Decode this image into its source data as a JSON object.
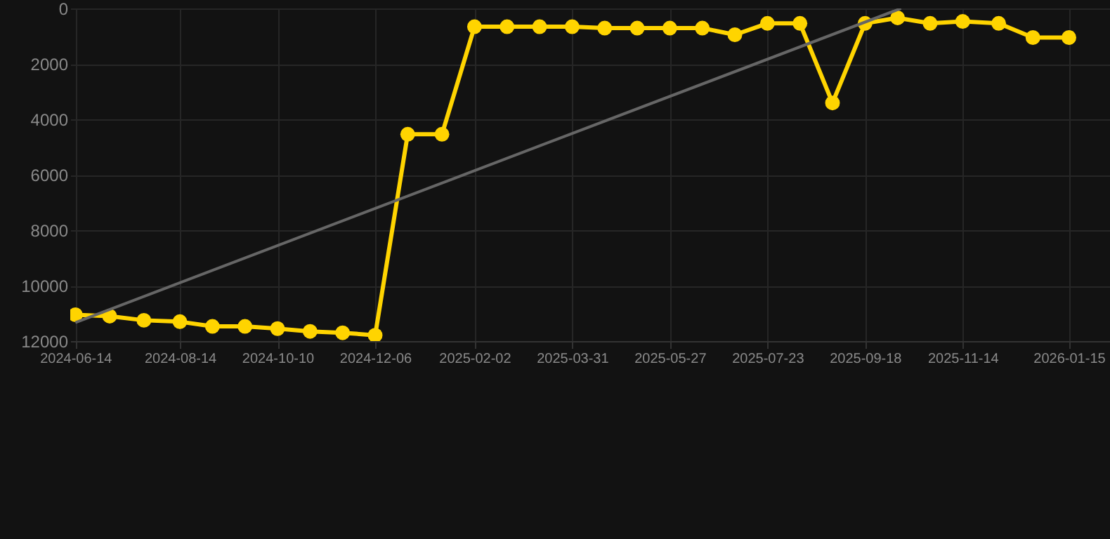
{
  "chart_data": {
    "type": "line",
    "x": [
      "2024-06-14",
      "2024-07-04",
      "2024-07-24",
      "2024-08-14",
      "2024-09-02",
      "2024-09-21",
      "2024-10-10",
      "2024-10-29",
      "2024-11-17",
      "2024-12-06",
      "2024-12-25",
      "2025-01-14",
      "2025-02-02",
      "2025-02-21",
      "2025-03-12",
      "2025-03-31",
      "2025-04-19",
      "2025-05-08",
      "2025-05-27",
      "2025-06-15",
      "2025-07-04",
      "2025-07-23",
      "2025-08-11",
      "2025-08-30",
      "2025-09-18",
      "2025-10-07",
      "2025-10-26",
      "2025-11-14",
      "2025-12-05",
      "2025-12-25",
      "2026-01-15"
    ],
    "series": [
      {
        "color": "#ffd400",
        "marker": "circle",
        "values": [
          11050,
          11100,
          11250,
          11300,
          11470,
          11470,
          11550,
          11650,
          11700,
          11790,
          4540,
          4540,
          660,
          660,
          660,
          660,
          710,
          710,
          710,
          710,
          950,
          540,
          540,
          3410,
          540,
          340,
          540,
          470,
          540,
          1050,
          1050
        ]
      },
      {
        "type": "line",
        "color": "#666666",
        "marker": "none",
        "x": [
          "2024-06-14",
          "2025-10-09"
        ],
        "values": [
          11330,
          0
        ]
      }
    ],
    "xlim": [
      "2024-06-11",
      "2026-02-08"
    ],
    "xticks": [
      {
        "value": "2024-06-14",
        "label": "2024-06-14"
      },
      {
        "value": "2024-08-14",
        "label": "2024-08-14"
      },
      {
        "value": "2024-10-10",
        "label": "2024-10-10"
      },
      {
        "value": "2024-12-06",
        "label": "2024-12-06"
      },
      {
        "value": "2025-02-02",
        "label": "2025-02-02"
      },
      {
        "value": "2025-03-31",
        "label": "2025-03-31"
      },
      {
        "value": "2025-05-27",
        "label": "2025-05-27"
      },
      {
        "value": "2025-07-23",
        "label": "2025-07-23"
      },
      {
        "value": "2025-09-18",
        "label": "2025-09-18"
      },
      {
        "value": "2025-11-14",
        "label": "2025-11-14"
      },
      {
        "value": "2026-01-15",
        "label": "2026-01-15"
      }
    ],
    "ylim": [
      12000,
      0
    ],
    "yticks": [
      0,
      2000,
      4000,
      6000,
      8000,
      10000,
      12000
    ],
    "grid": true
  }
}
